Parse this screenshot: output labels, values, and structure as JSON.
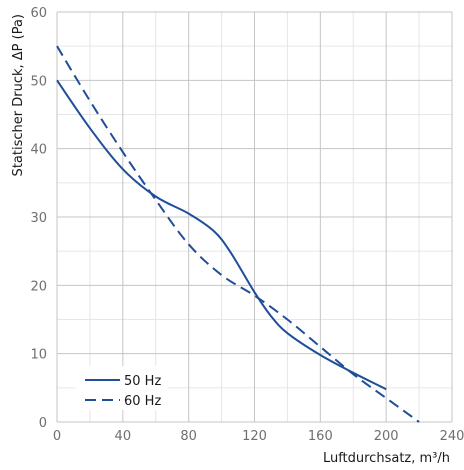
{
  "chart_data": {
    "type": "line",
    "title": "",
    "xlabel": "Luftdurchsatz, m³/h",
    "ylabel": "Statischer Druck, ΔP (Pa)",
    "xlim": [
      0,
      240
    ],
    "ylim": [
      0,
      60
    ],
    "x_major_ticks": [
      0,
      40,
      80,
      120,
      160,
      200,
      240
    ],
    "y_major_ticks": [
      0,
      10,
      20,
      30,
      40,
      50,
      60
    ],
    "x_minor_step": 20,
    "y_minor_step": 5,
    "grid": true,
    "legend": {
      "position": "bottom-left"
    },
    "series": [
      {
        "name": "50 Hz",
        "style": "solid",
        "color": "#1f4e9a",
        "points": [
          [
            0,
            50
          ],
          [
            20,
            43
          ],
          [
            40,
            37
          ],
          [
            60,
            33
          ],
          [
            80,
            30.5
          ],
          [
            95,
            28
          ],
          [
            105,
            25
          ],
          [
            120,
            19
          ],
          [
            130,
            15.5
          ],
          [
            140,
            13
          ],
          [
            160,
            9.8
          ],
          [
            180,
            7.2
          ],
          [
            200,
            4.8
          ]
        ]
      },
      {
        "name": "60 Hz",
        "style": "dashed",
        "color": "#1f4e9a",
        "points": [
          [
            0,
            55
          ],
          [
            20,
            47
          ],
          [
            40,
            39.5
          ],
          [
            60,
            32.5
          ],
          [
            80,
            26
          ],
          [
            100,
            21.5
          ],
          [
            120,
            18.5
          ],
          [
            140,
            15
          ],
          [
            160,
            11
          ],
          [
            180,
            7
          ],
          [
            200,
            3.5
          ],
          [
            220,
            0
          ]
        ]
      }
    ]
  }
}
